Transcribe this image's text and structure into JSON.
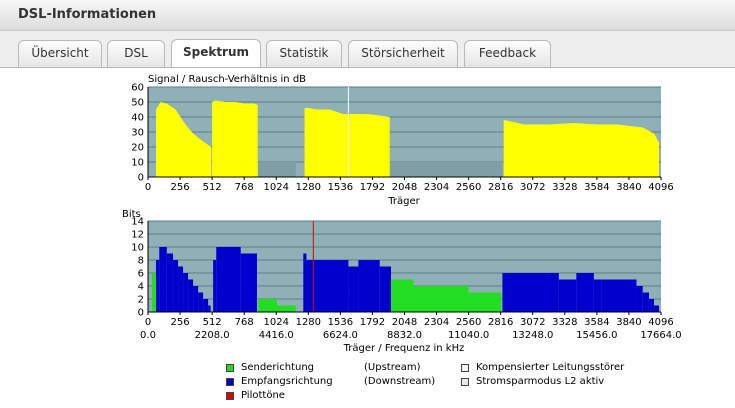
{
  "window": {
    "title": "DSL-Informationen"
  },
  "tabs": [
    {
      "label": "Übersicht",
      "active": false
    },
    {
      "label": "DSL",
      "active": false
    },
    {
      "label": "Spektrum",
      "active": true
    },
    {
      "label": "Statistik",
      "active": false
    },
    {
      "label": "Störsicherheit",
      "active": false
    },
    {
      "label": "Feedback",
      "active": false
    }
  ],
  "colors": {
    "snr_fill": "#ffff00",
    "upstream": "#22dd22",
    "downstream": "#0000cc",
    "pilot": "#dd0000",
    "plot_bg": "#8fb0b7",
    "grid": "#5f7e86"
  },
  "chart_data": [
    {
      "type": "area",
      "title": "Signal / Rausch-Verhältnis in dB",
      "xlabel": "Träger",
      "ylabel": "",
      "xlim": [
        0,
        4096
      ],
      "ylim": [
        0,
        60
      ],
      "x_ticks": [
        "0",
        "256",
        "512",
        "768",
        "1024",
        "1280",
        "1536",
        "1792",
        "2048",
        "2304",
        "2560",
        "2816",
        "3072",
        "3328",
        "3584",
        "3840",
        "4096"
      ],
      "y_ticks": [
        "0",
        "10",
        "20",
        "30",
        "40",
        "50",
        "60"
      ],
      "grid": true,
      "series": [
        {
          "color": "yellow",
          "segments": [
            {
              "x": [
                64,
                100,
                150,
                220,
                300,
                360,
                420,
                470,
                505
              ],
              "y": [
                45,
                50,
                49,
                45,
                35,
                29,
                25,
                22,
                20
              ]
            },
            {
              "x": [
                512,
                540,
                620,
                700,
                768,
                850,
                876
              ],
              "y": [
                50,
                51,
                50,
                50,
                49,
                49,
                48
              ]
            },
            {
              "x": [
                1250,
                1280,
                1350,
                1450,
                1560,
                1650,
                1750,
                1850,
                1930
              ],
              "y": [
                46,
                46,
                45,
                45,
                42,
                42,
                42,
                41,
                40
              ]
            },
            {
              "x": [
                2840,
                2900,
                3000,
                3200,
                3400,
                3600,
                3750,
                3850,
                3950,
                4040,
                4080
              ],
              "y": [
                38,
                37,
                35,
                35,
                36,
                35,
                35,
                34,
                33,
                29,
                23
              ]
            }
          ]
        },
        {
          "color": "white",
          "marker_line_x": 1600
        }
      ],
      "dark_bands": [
        {
          "x": [
            880,
            1180
          ],
          "y": 10
        },
        {
          "x": [
            1930,
            2830
          ],
          "y": 10
        }
      ]
    },
    {
      "type": "bar",
      "title": "Bits",
      "xlabel": "Träger / Frequenz in kHz",
      "ylabel": "",
      "xlim": [
        0,
        4096
      ],
      "ylim": [
        0,
        14
      ],
      "x_ticks": [
        "0",
        "256",
        "512",
        "768",
        "1024",
        "1280",
        "1536",
        "1792",
        "2048",
        "2304",
        "2560",
        "2816",
        "3072",
        "3328",
        "3584",
        "3840",
        "4096"
      ],
      "freq_ticks": [
        "0.0",
        "2208.0",
        "4416.0",
        "6624.0",
        "8832.0",
        "11040.0",
        "13248.0",
        "15456.0",
        "17664.0"
      ],
      "y_ticks": [
        "0",
        "2",
        "4",
        "6",
        "8",
        "10",
        "12",
        "14"
      ],
      "grid": true,
      "series": [
        {
          "name": "Senderichtung",
          "direction": "Upstream",
          "color": "green",
          "steps": [
            {
              "x": [
                32,
                64
              ],
              "bits": 6
            },
            {
              "x": [
                880,
                1030
              ],
              "bits": 2
            },
            {
              "x": [
                1030,
                1180
              ],
              "bits": 1
            },
            {
              "x": [
                1940,
                2120
              ],
              "bits": 5
            },
            {
              "x": [
                2120,
                2560
              ],
              "bits": 4
            },
            {
              "x": [
                2560,
                2820
              ],
              "bits": 3
            }
          ]
        },
        {
          "name": "Empfangsrichtung",
          "direction": "Downstream",
          "color": "blue",
          "steps": [
            {
              "x": [
                64,
                90
              ],
              "bits": 8
            },
            {
              "x": [
                90,
                150
              ],
              "bits": 10
            },
            {
              "x": [
                150,
                200
              ],
              "bits": 9
            },
            {
              "x": [
                200,
                240
              ],
              "bits": 8
            },
            {
              "x": [
                240,
                280
              ],
              "bits": 7
            },
            {
              "x": [
                280,
                320
              ],
              "bits": 6
            },
            {
              "x": [
                320,
                360
              ],
              "bits": 5
            },
            {
              "x": [
                360,
                400
              ],
              "bits": 4
            },
            {
              "x": [
                400,
                440
              ],
              "bits": 3
            },
            {
              "x": [
                440,
                480
              ],
              "bits": 2
            },
            {
              "x": [
                480,
                500
              ],
              "bits": 1
            },
            {
              "x": [
                520,
                545
              ],
              "bits": 8
            },
            {
              "x": [
                545,
                740
              ],
              "bits": 10
            },
            {
              "x": [
                740,
                870
              ],
              "bits": 9
            },
            {
              "x": [
                1240,
                1265
              ],
              "bits": 9
            },
            {
              "x": [
                1265,
                1600
              ],
              "bits": 8
            },
            {
              "x": [
                1600,
                1680
              ],
              "bits": 7
            },
            {
              "x": [
                1680,
                1850
              ],
              "bits": 8
            },
            {
              "x": [
                1850,
                1940
              ],
              "bits": 7
            },
            {
              "x": [
                2830,
                3280
              ],
              "bits": 6
            },
            {
              "x": [
                3280,
                3420
              ],
              "bits": 5
            },
            {
              "x": [
                3420,
                3560
              ],
              "bits": 6
            },
            {
              "x": [
                3560,
                3620
              ],
              "bits": 5
            },
            {
              "x": [
                3620,
                3900
              ],
              "bits": 5
            },
            {
              "x": [
                3900,
                3950
              ],
              "bits": 4
            },
            {
              "x": [
                3950,
                4000
              ],
              "bits": 3
            },
            {
              "x": [
                4000,
                4040
              ],
              "bits": 2
            },
            {
              "x": [
                4040,
                4080
              ],
              "bits": 1
            }
          ]
        },
        {
          "name": "Pilottöne",
          "color": "red",
          "marker_line_x": 1320
        }
      ]
    }
  ],
  "legend": {
    "upstream_label": "Senderichtung",
    "upstream_dir": "(Upstream)",
    "downstream_label": "Empfangsrichtung",
    "downstream_dir": "(Downstream)",
    "pilot_label": "Pilottöne",
    "compensated_label": "Kompensierter Leitungsstörer",
    "powersave_label": "Stromsparmodus L2 aktiv"
  }
}
